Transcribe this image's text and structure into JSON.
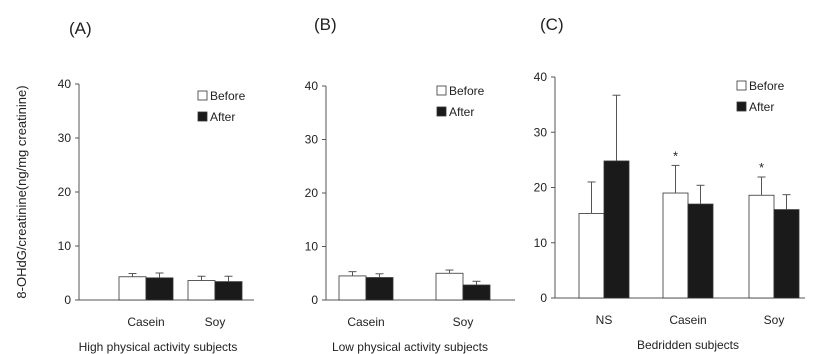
{
  "figure": {
    "ylabel": "8-OHdG/creatinine(ng/mg creatinine)"
  },
  "chart_data": [
    {
      "type": "bar",
      "panel_label": "(A)",
      "xlabel": "High physical activity subjects",
      "ylabel": "8-OHdG/creatinine(ng/mg creatinine)",
      "ylim": [
        0,
        40
      ],
      "yticks": [
        0,
        10,
        20,
        30,
        40
      ],
      "categories": [
        "Casein",
        "Soy"
      ],
      "series": [
        {
          "name": "Before",
          "values": [
            4.3,
            3.6
          ],
          "errors": [
            0.6,
            0.8
          ],
          "color": "#ffffff"
        },
        {
          "name": "After",
          "values": [
            4.1,
            3.4
          ],
          "errors": [
            0.9,
            1.0
          ],
          "color": "#1a1a1a"
        }
      ],
      "annotations": [],
      "legend": "top-right",
      "grid": false
    },
    {
      "type": "bar",
      "panel_label": "(B)",
      "xlabel": "Low physical activity subjects",
      "ylim": [
        0,
        40
      ],
      "yticks": [
        0,
        10,
        20,
        30,
        40
      ],
      "categories": [
        "Casein",
        "Soy"
      ],
      "series": [
        {
          "name": "Before",
          "values": [
            4.5,
            5.0
          ],
          "errors": [
            0.8,
            0.6
          ],
          "color": "#ffffff"
        },
        {
          "name": "After",
          "values": [
            4.2,
            2.8
          ],
          "errors": [
            0.7,
            0.7
          ],
          "color": "#1a1a1a"
        }
      ],
      "annotations": [],
      "legend": "top-right",
      "grid": false
    },
    {
      "type": "bar",
      "panel_label": "(C)",
      "xlabel": "Bedridden subjects",
      "ylim": [
        0,
        40
      ],
      "yticks": [
        0,
        10,
        20,
        30,
        40
      ],
      "categories": [
        "NS",
        "Casein",
        "Soy"
      ],
      "series": [
        {
          "name": "Before",
          "values": [
            15.3,
            19.0,
            18.6
          ],
          "errors": [
            5.7,
            5.0,
            3.3
          ],
          "color": "#ffffff"
        },
        {
          "name": "After",
          "values": [
            24.8,
            17.0,
            16.0
          ],
          "errors": [
            11.9,
            3.4,
            2.7
          ],
          "color": "#1a1a1a"
        }
      ],
      "annotations": [
        {
          "text": "*",
          "category": "Casein",
          "series": "Before"
        },
        {
          "text": "*",
          "category": "Soy",
          "series": "Before"
        }
      ],
      "legend": "top-right",
      "grid": false
    }
  ]
}
